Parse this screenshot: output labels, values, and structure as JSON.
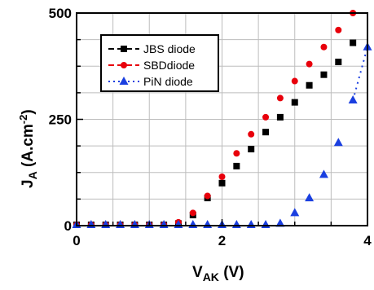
{
  "chart_data": {
    "type": "scatter",
    "title": "",
    "xlabel_main": "V",
    "xlabel_sub": "AK",
    "xlabel_unit": " (V)",
    "ylabel_main": "J",
    "ylabel_sub": "A",
    "ylabel_unit": " (A.cm",
    "ylabel_exp": "-2",
    "ylabel_close": ")",
    "xlim": [
      0,
      4
    ],
    "ylim": [
      0,
      500
    ],
    "x_ticks": [
      0,
      2,
      4
    ],
    "y_ticks": [
      0,
      250,
      500
    ],
    "x_tick_labels": [
      "0",
      "2",
      "4"
    ],
    "y_tick_labels": [
      "0",
      "250",
      "500"
    ],
    "grid": true,
    "legend_position": "top-left",
    "series": [
      {
        "name": "JBS diode",
        "color": "#000000",
        "marker": "square",
        "line": "dashed",
        "x": [
          0.0,
          0.2,
          0.4,
          0.6,
          0.8,
          1.0,
          1.2,
          1.4,
          1.6,
          1.8,
          2.0,
          2.2,
          2.4,
          2.6,
          2.8,
          3.0,
          3.2,
          3.4,
          3.6,
          3.8
        ],
        "y": [
          0,
          0,
          0,
          0,
          0,
          0,
          0,
          5,
          25,
          65,
          100,
          140,
          180,
          220,
          255,
          290,
          330,
          355,
          385,
          430
        ]
      },
      {
        "name": "SBD",
        "legend_suffix": "diode",
        "color": "#e8000b",
        "marker": "circle",
        "line": "dashed",
        "x": [
          0.0,
          0.2,
          0.4,
          0.6,
          0.8,
          1.0,
          1.2,
          1.4,
          1.6,
          1.8,
          2.0,
          2.2,
          2.4,
          2.6,
          2.8,
          3.0,
          3.2,
          3.4,
          3.6,
          3.8
        ],
        "y": [
          0,
          0,
          0,
          0,
          0,
          0,
          0,
          8,
          30,
          70,
          115,
          170,
          215,
          255,
          300,
          340,
          380,
          420,
          460,
          500
        ]
      },
      {
        "name": "PiN  diode",
        "color": "#1a3fe0",
        "marker": "triangle",
        "line": "dotted",
        "x": [
          0.0,
          0.2,
          0.4,
          0.6,
          0.8,
          1.0,
          1.2,
          1.4,
          1.6,
          1.8,
          2.0,
          2.2,
          2.4,
          2.6,
          2.8,
          3.0,
          3.2,
          3.4,
          3.6,
          3.8,
          4.0
        ],
        "y": [
          0,
          0,
          0,
          0,
          0,
          0,
          0,
          0,
          0,
          0,
          0,
          0,
          0,
          0,
          5,
          30,
          65,
          120,
          195,
          295,
          420
        ]
      }
    ]
  }
}
